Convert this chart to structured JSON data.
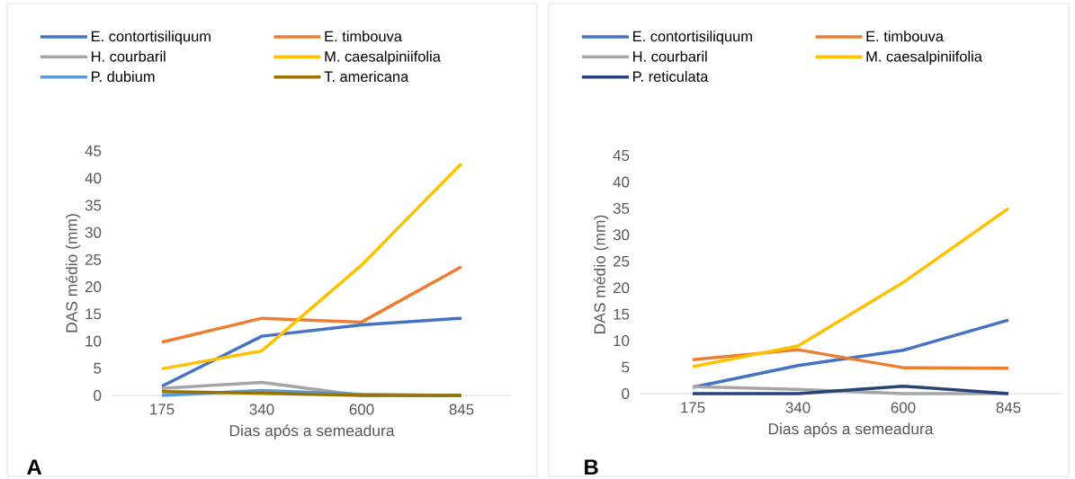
{
  "chart_data": [
    {
      "type": "line",
      "categories": [
        "175",
        "340",
        "600",
        "845"
      ],
      "xlabel": "Dias após a semeadura",
      "ylabel": "DAS médio (mm)",
      "ylim": [
        0,
        45
      ],
      "yticks": [
        0,
        5,
        10,
        15,
        20,
        25,
        30,
        35,
        40,
        45
      ],
      "grid": false,
      "legend": "top",
      "annotations": [
        "A"
      ],
      "series": [
        {
          "name": "E. contortisiliquum",
          "color": "#4472c4",
          "values": [
            1.7,
            10.9,
            13.0,
            14.2
          ]
        },
        {
          "name": "E. timbouva",
          "color": "#ed7d31",
          "values": [
            9.8,
            14.2,
            13.5,
            23.7
          ]
        },
        {
          "name": "H. courbaril",
          "color": "#a5a5a5",
          "values": [
            1.3,
            2.4,
            0,
            0
          ]
        },
        {
          "name": "M. caesalpiniifolia",
          "color": "#ffc000",
          "values": [
            4.9,
            8.2,
            24.0,
            42.7
          ]
        },
        {
          "name": "P. dubium",
          "color": "#5b9bd5",
          "values": [
            0,
            0.9,
            0.2,
            0
          ]
        },
        {
          "name": "T. americana",
          "color": "#997300",
          "values": [
            0.7,
            0.4,
            0,
            0
          ]
        }
      ]
    },
    {
      "type": "line",
      "categories": [
        "175",
        "340",
        "600",
        "845"
      ],
      "xlabel": "Dias após a semeadura",
      "ylabel": "DAS médio (mm)",
      "ylim": [
        0,
        45
      ],
      "yticks": [
        0,
        5,
        10,
        15,
        20,
        25,
        30,
        35,
        40,
        45
      ],
      "grid": false,
      "legend": "top",
      "annotations": [
        "B"
      ],
      "series": [
        {
          "name": "E. contortisiliquum",
          "color": "#4472c4",
          "values": [
            1.2,
            5.3,
            8.2,
            13.9
          ]
        },
        {
          "name": "E. timbouva",
          "color": "#ed7d31",
          "values": [
            6.4,
            8.3,
            4.9,
            4.8
          ]
        },
        {
          "name": "H. courbaril",
          "color": "#a5a5a5",
          "values": [
            1.3,
            0.8,
            0,
            0
          ]
        },
        {
          "name": "M. caesalpiniifolia",
          "color": "#ffc000",
          "values": [
            5.1,
            9.0,
            21.0,
            35.0
          ]
        },
        {
          "name": "P. reticulata",
          "color": "#264478",
          "values": [
            0,
            0,
            1.4,
            0
          ]
        }
      ]
    }
  ]
}
